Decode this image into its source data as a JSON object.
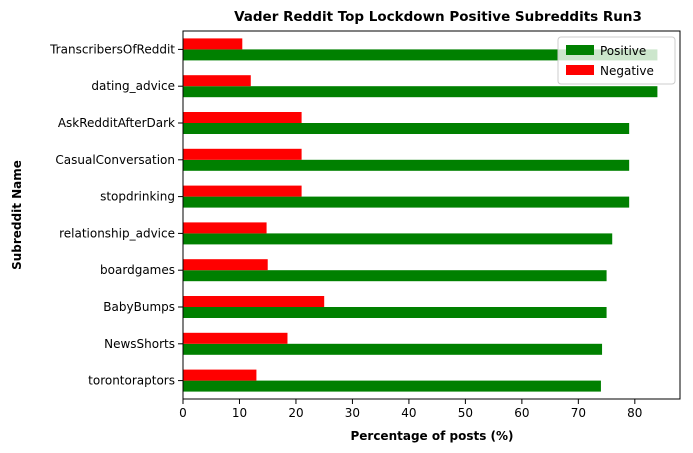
{
  "chart_data": {
    "type": "bar",
    "orientation": "horizontal",
    "title": "Vader Reddit Top Lockdown Positive Subreddits Run3",
    "xlabel": "Percentage of posts (%)",
    "ylabel": "Subreddit Name",
    "xlim": [
      0,
      88
    ],
    "xticks": [
      0,
      10,
      20,
      30,
      40,
      50,
      60,
      70,
      80
    ],
    "categories": [
      "TranscribersOfReddit",
      "dating_advice",
      "AskRedditAfterDark",
      "CasualConversation",
      "stopdrinking",
      "relationship_advice",
      "boardgames",
      "BabyBumps",
      "NewsShorts",
      "torontoraptors"
    ],
    "series": [
      {
        "name": "Positive",
        "color": "#008000",
        "values": [
          84,
          84,
          79,
          79,
          79,
          76,
          75,
          75,
          74.2,
          74
        ]
      },
      {
        "name": "Negative",
        "color": "#ff0000",
        "values": [
          10.5,
          12,
          21,
          21,
          21,
          14.8,
          15,
          25,
          18.5,
          13
        ]
      }
    ],
    "legend_position": "top-right",
    "grid": false
  }
}
